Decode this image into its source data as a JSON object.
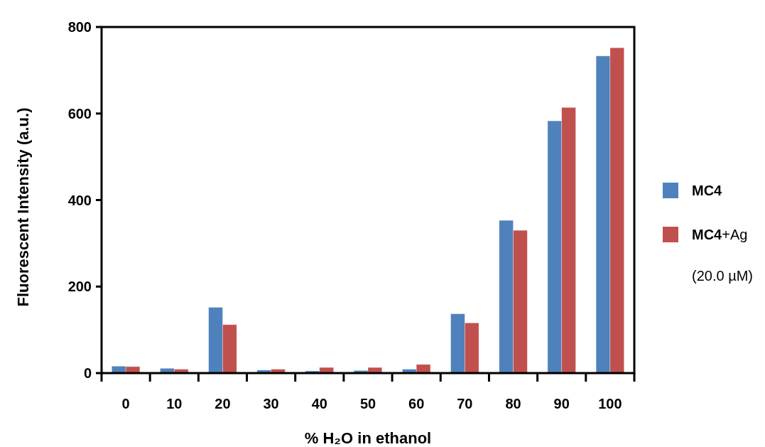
{
  "chart_data": {
    "type": "bar",
    "xlabel": "% H₂O in ethanol",
    "ylabel": "Fluorescent Intensity (a.u.)",
    "categories": [
      "0",
      "10",
      "20",
      "30",
      "40",
      "50",
      "60",
      "70",
      "80",
      "90",
      "100"
    ],
    "series": [
      {
        "name": "MC4",
        "color": "#4f81bd",
        "values": [
          16,
          11,
          152,
          7,
          5,
          6,
          9,
          137,
          353,
          583,
          733
        ]
      },
      {
        "name": "MC4+Ag (20.0 µM)",
        "color": "#c0504d",
        "values": [
          15,
          9,
          112,
          9,
          13,
          13,
          20,
          116,
          330,
          614,
          752
        ]
      }
    ],
    "ylim": [
      0,
      800
    ],
    "yticks": [
      0,
      200,
      400,
      600,
      800
    ],
    "grid": false,
    "legend": "right"
  }
}
